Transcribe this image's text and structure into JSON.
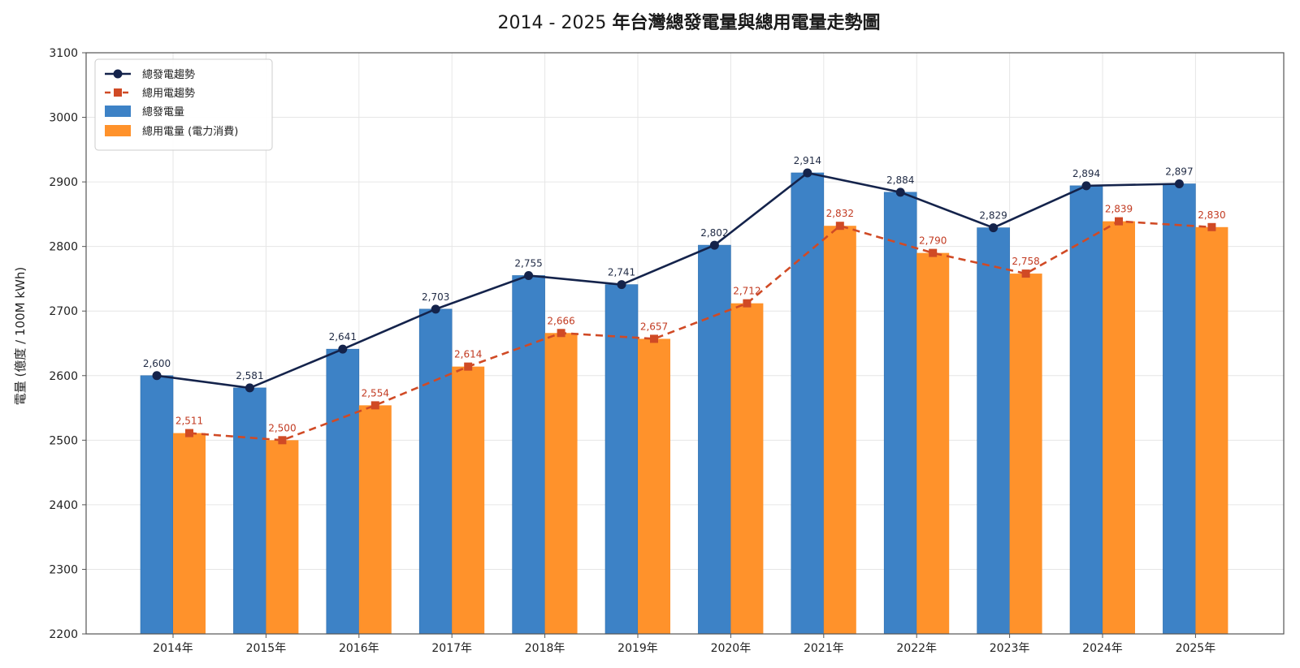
{
  "colors": {
    "gen_bar": "#3d82c6",
    "use_bar": "#ff922b",
    "gen_line": "#14234b",
    "use_line": "#d04a25",
    "use_label": "#c23b22",
    "grid": "#e6e6e6",
    "axis": "#555555"
  },
  "chart_data": {
    "type": "bar",
    "title_prefix": "2014 - 2025 ",
    "title_main": "年台灣總發電量與總用電量走勢圖",
    "ylabel": "電量 (億度 / 100M kWh)",
    "xlabel": "",
    "ylim": [
      2200,
      3100
    ],
    "yticks": [
      2200,
      2300,
      2400,
      2500,
      2600,
      2700,
      2800,
      2900,
      3000,
      3100
    ],
    "grid": true,
    "legend_position": "top-left",
    "categories": [
      "2014年",
      "2015年",
      "2016年",
      "2017年",
      "2018年",
      "2019年",
      "2020年",
      "2021年",
      "2022年",
      "2023年",
      "2024年",
      "2025年"
    ],
    "series": [
      {
        "name": "總發電量",
        "kind": "bar",
        "values": [
          2600,
          2581,
          2641,
          2703,
          2755,
          2741,
          2802,
          2914,
          2884,
          2829,
          2894,
          2897
        ]
      },
      {
        "name": "總用電量 (電力消費)",
        "kind": "bar",
        "values": [
          2511,
          2500,
          2554,
          2614,
          2666,
          2657,
          2712,
          2832,
          2790,
          2758,
          2839,
          2830
        ]
      },
      {
        "name": "總發電趨勢",
        "kind": "line",
        "values": [
          2600,
          2581,
          2641,
          2703,
          2755,
          2741,
          2802,
          2914,
          2884,
          2829,
          2894,
          2897
        ]
      },
      {
        "name": "總用電趨勢",
        "kind": "line-dashed",
        "values": [
          2511,
          2500,
          2554,
          2614,
          2666,
          2657,
          2712,
          2832,
          2790,
          2758,
          2839,
          2830
        ]
      }
    ],
    "data_labels_gen": [
      "2,600",
      "2,581",
      "2,641",
      "2,703",
      "2,755",
      "2,741",
      "2,802",
      "2,914",
      "2,884",
      "2,829",
      "2,894",
      "2,897"
    ],
    "data_labels_use": [
      "2,511",
      "2,500",
      "2,554",
      "2,614",
      "2,666",
      "2,657",
      "2,712",
      "2,832",
      "2,790",
      "2,758",
      "2,839",
      "2,830"
    ],
    "legend": [
      "總發電趨勢",
      "總用電趨勢",
      "總發電量",
      "總用電量 (電力消費)"
    ]
  }
}
